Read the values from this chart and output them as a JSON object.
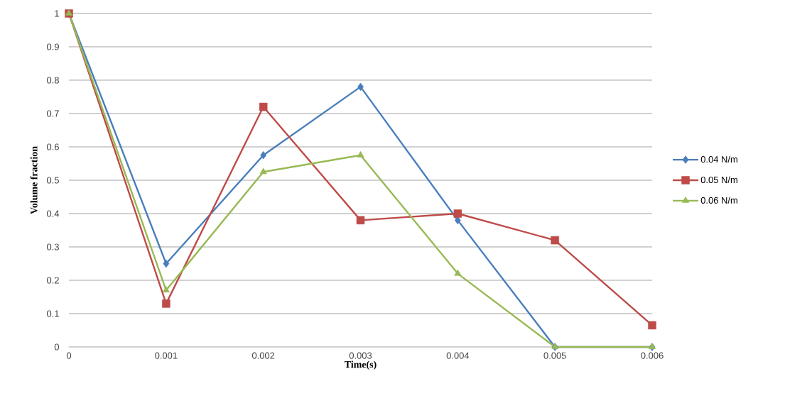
{
  "chart_data": {
    "type": "line",
    "xlabel": "Time(s)",
    "ylabel": "Volume fraction",
    "x": [
      0,
      0.001,
      0.002,
      0.003,
      0.004,
      0.005,
      0.006
    ],
    "series": [
      {
        "name": "0.04 N/m",
        "color": "#4a7ebb",
        "marker": "diamond",
        "values": [
          1,
          0.25,
          0.575,
          0.78,
          0.38,
          0,
          0
        ]
      },
      {
        "name": "0.05 N/m",
        "color": "#be4b48",
        "marker": "square",
        "values": [
          1,
          0.13,
          0.72,
          0.38,
          0.4,
          0.32,
          0.065
        ]
      },
      {
        "name": "0.06 N/m",
        "color": "#98b954",
        "marker": "triangle",
        "values": [
          1,
          0.17,
          0.525,
          0.575,
          0.22,
          0,
          0
        ]
      }
    ],
    "xlim": [
      0,
      0.006
    ],
    "ylim": [
      0,
      1
    ],
    "xticks": [
      0,
      0.001,
      0.002,
      0.003,
      0.004,
      0.005,
      0.006
    ],
    "yticks": [
      0,
      0.1,
      0.2,
      0.3,
      0.4,
      0.5,
      0.6,
      0.7,
      0.8,
      0.9,
      1
    ],
    "grid": "y",
    "legend": "right",
    "line_style": "solid"
  }
}
